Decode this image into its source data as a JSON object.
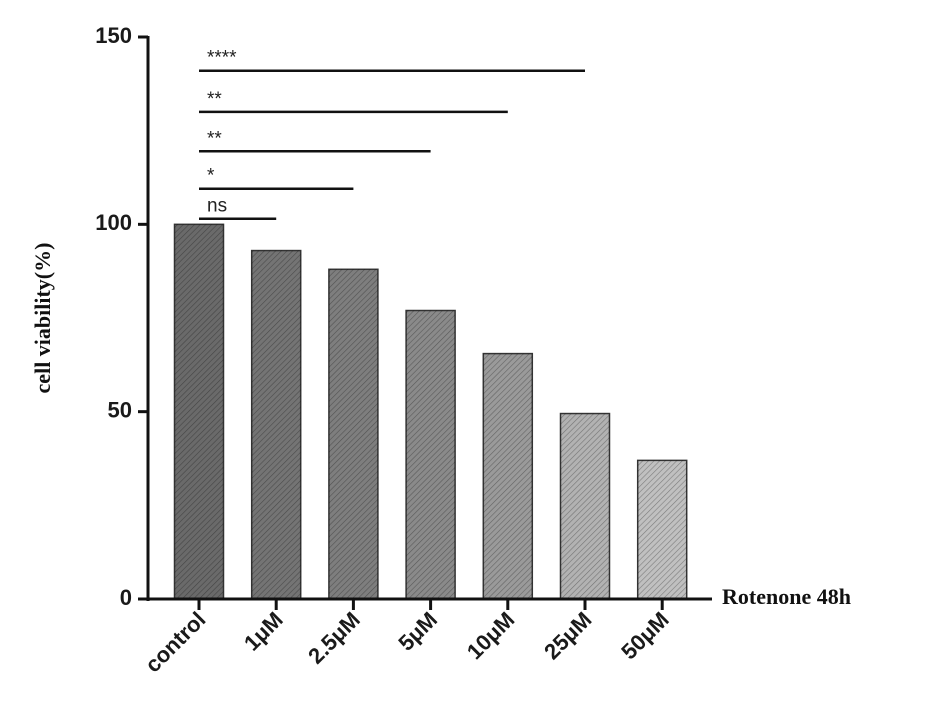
{
  "chart_data": {
    "type": "bar",
    "categories": [
      "control",
      "1μM",
      "2.5μM",
      "5μM",
      "10μM",
      "25μM",
      "50μM"
    ],
    "values": [
      100,
      93,
      88,
      77,
      65.5,
      49.5,
      37
    ],
    "ylabel": "cell viability(%)",
    "xlabel": "Rotenone 48h",
    "ylim": [
      0,
      150
    ],
    "yticks": [
      0,
      50,
      100,
      150
    ],
    "grid": false,
    "bar_colors": [
      "#6a6a6a",
      "#747474",
      "#7e7e7e",
      "#8a8a8a",
      "#9a9a9a",
      "#b2b2b2",
      "#c0c0c0"
    ],
    "significance": [
      {
        "label": "ns",
        "from": "control",
        "to": "1μM",
        "level": 101.5
      },
      {
        "label": "*",
        "from": "control",
        "to": "2.5μM",
        "level": 109.5
      },
      {
        "label": "**",
        "from": "control",
        "to": "5μM",
        "level": 119.5
      },
      {
        "label": "**",
        "from": "control",
        "to": "10μM",
        "level": 130
      },
      {
        "label": "****",
        "from": "control",
        "to": "25μM",
        "level": 141
      }
    ]
  }
}
